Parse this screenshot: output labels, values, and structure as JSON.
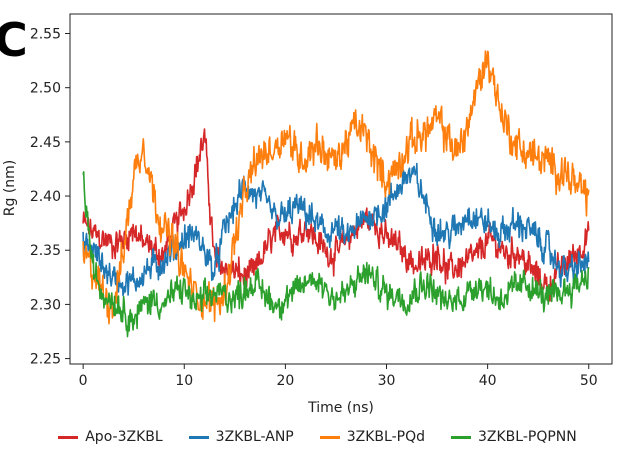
{
  "panel_label": "C",
  "colors": {
    "apo": "#d62728",
    "anp": "#1f77b4",
    "pqd": "#ff7f0e",
    "pqpnn": "#2ca02c"
  },
  "chart_data": {
    "type": "line",
    "title": "",
    "xlabel": "Time (ns)",
    "ylabel": "Rg (nm)",
    "xlim": [
      -1.3,
      52.3
    ],
    "ylim": [
      2.245,
      2.568
    ],
    "xticks": [
      0,
      10,
      20,
      30,
      40,
      50
    ],
    "yticks": [
      2.25,
      2.3,
      2.35,
      2.4,
      2.45,
      2.5,
      2.55
    ],
    "ytick_labels": [
      "2.25",
      "2.30",
      "2.35",
      "2.40",
      "2.45",
      "2.50",
      "2.55"
    ],
    "legend_position": "bottom",
    "series": [
      {
        "name": "Apo-3ZKBL",
        "color": "#d62728",
        "noise": 0.016,
        "x": [
          0,
          1,
          2,
          3,
          4,
          5,
          6,
          7,
          8,
          9,
          10,
          11,
          12,
          13,
          14,
          15,
          16,
          17,
          18,
          19,
          20,
          21,
          22,
          23,
          24,
          25,
          26,
          27,
          28,
          29,
          30,
          31,
          32,
          33,
          34,
          35,
          36,
          37,
          38,
          39,
          40,
          41,
          42,
          43,
          44,
          45,
          46,
          47,
          48,
          49,
          50
        ],
        "y": [
          2.375,
          2.365,
          2.36,
          2.355,
          2.36,
          2.37,
          2.355,
          2.35,
          2.345,
          2.37,
          2.39,
          2.42,
          2.455,
          2.34,
          2.335,
          2.33,
          2.325,
          2.33,
          2.35,
          2.365,
          2.37,
          2.36,
          2.375,
          2.36,
          2.35,
          2.345,
          2.36,
          2.37,
          2.38,
          2.375,
          2.36,
          2.355,
          2.345,
          2.335,
          2.34,
          2.35,
          2.33,
          2.335,
          2.34,
          2.345,
          2.36,
          2.355,
          2.345,
          2.35,
          2.335,
          2.325,
          2.315,
          2.33,
          2.34,
          2.35,
          2.365
        ]
      },
      {
        "name": "3ZKBL-ANP",
        "color": "#1f77b4",
        "noise": 0.016,
        "x": [
          0,
          1,
          2,
          3,
          4,
          5,
          6,
          7,
          8,
          9,
          10,
          11,
          12,
          13,
          14,
          15,
          16,
          17,
          18,
          19,
          20,
          21,
          22,
          23,
          24,
          25,
          26,
          27,
          28,
          29,
          30,
          31,
          32,
          33,
          34,
          35,
          36,
          37,
          38,
          39,
          40,
          41,
          42,
          43,
          44,
          45,
          46,
          47,
          48,
          49,
          50
        ],
        "y": [
          2.355,
          2.35,
          2.335,
          2.325,
          2.32,
          2.32,
          2.33,
          2.335,
          2.34,
          2.35,
          2.36,
          2.365,
          2.35,
          2.33,
          2.37,
          2.39,
          2.41,
          2.4,
          2.395,
          2.38,
          2.38,
          2.39,
          2.385,
          2.375,
          2.365,
          2.37,
          2.36,
          2.37,
          2.38,
          2.385,
          2.39,
          2.405,
          2.42,
          2.415,
          2.39,
          2.37,
          2.365,
          2.37,
          2.385,
          2.38,
          2.375,
          2.365,
          2.37,
          2.375,
          2.37,
          2.36,
          2.35,
          2.335,
          2.33,
          2.335,
          2.34
        ]
      },
      {
        "name": "3ZKBL-PQd",
        "color": "#ff7f0e",
        "noise": 0.02,
        "x": [
          0,
          1,
          2,
          3,
          4,
          5,
          6,
          7,
          8,
          9,
          10,
          11,
          12,
          13,
          14,
          15,
          16,
          17,
          18,
          19,
          20,
          21,
          22,
          23,
          24,
          25,
          26,
          27,
          28,
          29,
          30,
          31,
          32,
          33,
          34,
          35,
          36,
          37,
          38,
          39,
          40,
          41,
          42,
          43,
          44,
          45,
          46,
          47,
          48,
          49,
          50
        ],
        "y": [
          2.345,
          2.33,
          2.31,
          2.3,
          2.35,
          2.42,
          2.45,
          2.4,
          2.37,
          2.355,
          2.33,
          2.31,
          2.305,
          2.3,
          2.31,
          2.36,
          2.4,
          2.43,
          2.44,
          2.445,
          2.46,
          2.44,
          2.435,
          2.45,
          2.44,
          2.43,
          2.45,
          2.465,
          2.455,
          2.43,
          2.415,
          2.425,
          2.445,
          2.455,
          2.46,
          2.47,
          2.455,
          2.44,
          2.465,
          2.5,
          2.53,
          2.49,
          2.46,
          2.445,
          2.44,
          2.435,
          2.43,
          2.425,
          2.42,
          2.405,
          2.4
        ]
      },
      {
        "name": "3ZKBL-PQPNN",
        "color": "#2ca02c",
        "noise": 0.016,
        "x": [
          0,
          1,
          2,
          3,
          4,
          5,
          6,
          7,
          8,
          9,
          10,
          11,
          12,
          13,
          14,
          15,
          16,
          17,
          18,
          19,
          20,
          21,
          22,
          23,
          24,
          25,
          26,
          27,
          28,
          29,
          30,
          31,
          32,
          33,
          34,
          35,
          36,
          37,
          38,
          39,
          40,
          41,
          42,
          43,
          44,
          45,
          46,
          47,
          48,
          49,
          50
        ],
        "y": [
          2.415,
          2.33,
          2.31,
          2.305,
          2.295,
          2.285,
          2.3,
          2.305,
          2.3,
          2.31,
          2.315,
          2.3,
          2.305,
          2.31,
          2.31,
          2.305,
          2.315,
          2.32,
          2.31,
          2.3,
          2.305,
          2.31,
          2.32,
          2.325,
          2.315,
          2.305,
          2.31,
          2.32,
          2.33,
          2.32,
          2.31,
          2.31,
          2.305,
          2.315,
          2.32,
          2.31,
          2.3,
          2.305,
          2.31,
          2.32,
          2.315,
          2.305,
          2.31,
          2.315,
          2.32,
          2.31,
          2.305,
          2.31,
          2.315,
          2.32,
          2.33
        ]
      }
    ]
  }
}
